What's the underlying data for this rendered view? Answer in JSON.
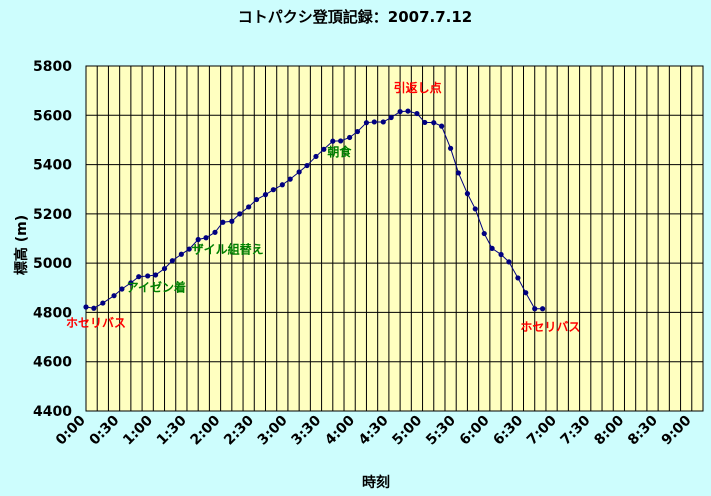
{
  "chart_data": {
    "type": "line",
    "title": "コトパクシ登頂記録：2007.7.12",
    "xlabel": "時刻",
    "ylabel": "標高 (m)",
    "x_unit": "minutes",
    "xlim": [
      0,
      550
    ],
    "ylim": [
      4400,
      5800
    ],
    "x_ticks": [
      "0:00",
      "0:30",
      "1:00",
      "1:30",
      "2:00",
      "2:30",
      "3:00",
      "3:30",
      "4:00",
      "4:30",
      "5:00",
      "5:30",
      "6:00",
      "6:30",
      "7:00",
      "7:30",
      "8:00",
      "8:30",
      "9:00"
    ],
    "y_ticks": [
      4400,
      4600,
      4800,
      5000,
      5200,
      5400,
      5600,
      5800
    ],
    "grid": true,
    "series": [
      {
        "color": "#000080",
        "points": [
          [
            0,
            4822
          ],
          [
            7,
            4817
          ],
          [
            15,
            4838
          ],
          [
            25,
            4868
          ],
          [
            32,
            4895
          ],
          [
            40,
            4920
          ],
          [
            47,
            4945
          ],
          [
            55,
            4948
          ],
          [
            62,
            4952
          ],
          [
            70,
            4978
          ],
          [
            77,
            5010
          ],
          [
            85,
            5036
          ],
          [
            92,
            5057
          ],
          [
            100,
            5096
          ],
          [
            107,
            5103
          ],
          [
            115,
            5125
          ],
          [
            122,
            5166
          ],
          [
            130,
            5170
          ],
          [
            137,
            5200
          ],
          [
            145,
            5228
          ],
          [
            152,
            5258
          ],
          [
            160,
            5278
          ],
          [
            167,
            5298
          ],
          [
            175,
            5318
          ],
          [
            182,
            5341
          ],
          [
            190,
            5370
          ],
          [
            197,
            5396
          ],
          [
            205,
            5433
          ],
          [
            212,
            5462
          ],
          [
            220,
            5495
          ],
          [
            227,
            5496
          ],
          [
            235,
            5510
          ],
          [
            242,
            5534
          ],
          [
            250,
            5570
          ],
          [
            257,
            5573
          ],
          [
            265,
            5573
          ],
          [
            272,
            5591
          ],
          [
            280,
            5615
          ],
          [
            287,
            5617
          ],
          [
            295,
            5607
          ],
          [
            302,
            5571
          ],
          [
            310,
            5570
          ],
          [
            317,
            5556
          ],
          [
            325,
            5466
          ],
          [
            332,
            5366
          ],
          [
            340,
            5282
          ],
          [
            347,
            5220
          ],
          [
            355,
            5120
          ],
          [
            362,
            5060
          ],
          [
            370,
            5035
          ],
          [
            377,
            5005
          ],
          [
            385,
            4940
          ],
          [
            392,
            4880
          ],
          [
            400,
            4815
          ],
          [
            407,
            4815
          ]
        ]
      }
    ],
    "annotations": [
      {
        "text": "ホセリバス",
        "x": 0,
        "y": 4740,
        "color": "#ff0000"
      },
      {
        "text": "アイゼン着",
        "x": 54,
        "y": 4885,
        "color": "#008000"
      },
      {
        "text": "ザイル組替え",
        "x": 112,
        "y": 5040,
        "color": "#008000"
      },
      {
        "text": "朝食",
        "x": 233,
        "y": 5435,
        "color": "#008000"
      },
      {
        "text": "引返し点",
        "x": 292,
        "y": 5695,
        "color": "#ff0000"
      },
      {
        "text": "ホセリバス",
        "x": 405,
        "y": 4725,
        "color": "#ff0000"
      }
    ]
  },
  "colors": {
    "background": "#cdfdfd",
    "plot_area": "#ffffc0",
    "grid": "#000000",
    "line": "#000080"
  }
}
